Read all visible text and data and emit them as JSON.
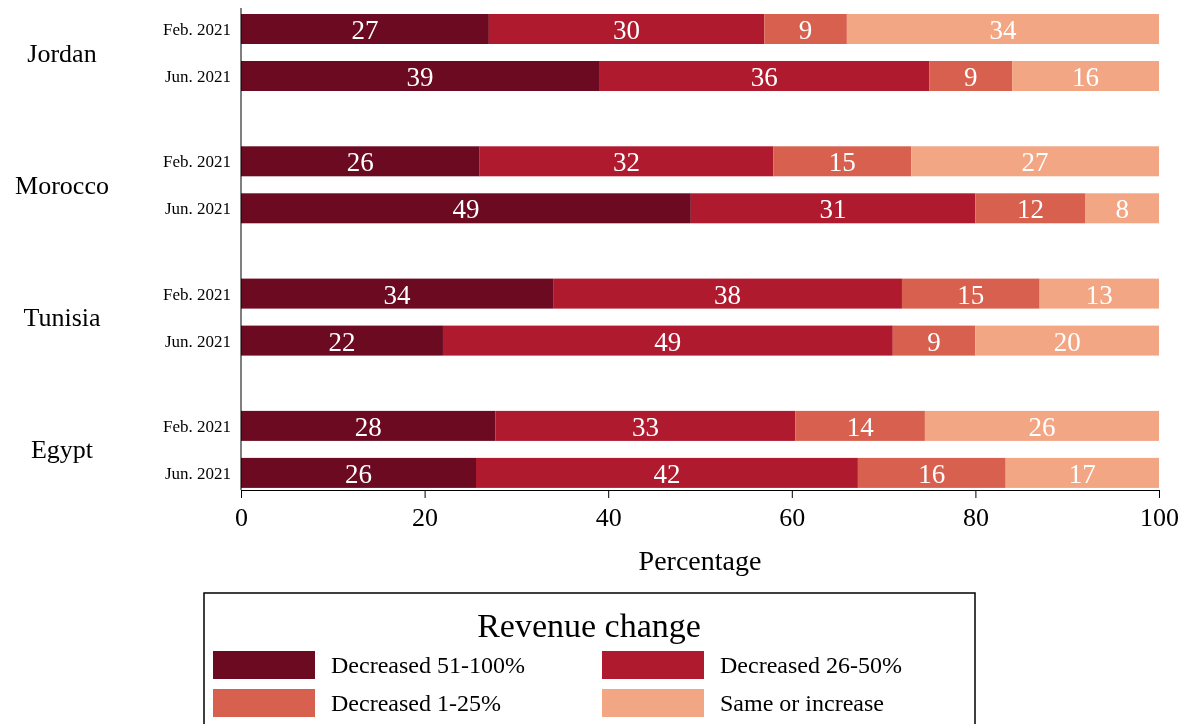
{
  "chart_data": {
    "type": "bar",
    "orientation": "horizontal",
    "stacked": true,
    "grid": false,
    "legend": "bottom",
    "legend_title": "Revenue change",
    "xlabel": "Percentage",
    "xlim": [
      0,
      100
    ],
    "xticks": [
      0,
      20,
      40,
      60,
      80,
      100
    ],
    "categories": [
      "Feb. 2021",
      "Jun. 2021",
      "Feb. 2021",
      "Jun. 2021",
      "Feb. 2021",
      "Jun. 2021",
      "Feb. 2021",
      "Jun. 2021"
    ],
    "annotations": [
      "Jordan",
      "Morocco",
      "Tunisia",
      "Egypt"
    ],
    "series": [
      {
        "name": "Decreased 51-100%",
        "color": "#6b0a21",
        "values": [
          27,
          39,
          26,
          49,
          34,
          22,
          27.7,
          25.6
        ],
        "value_labels": [
          "27",
          "39",
          "26",
          "49",
          "34",
          "22",
          "28",
          "26"
        ]
      },
      {
        "name": "Decreased 26-50%",
        "color": "#b01a2e",
        "values": [
          30,
          36,
          32,
          31,
          38,
          49,
          32.7,
          41.6
        ],
        "value_labels": [
          "30",
          "36",
          "32",
          "31",
          "38",
          "49",
          "33",
          "42"
        ]
      },
      {
        "name": "Decreased 1-25%",
        "color": "#d8604f",
        "values": [
          9,
          9,
          15,
          12,
          15,
          9,
          14.1,
          16.1
        ],
        "value_labels": [
          "9",
          "9",
          "15",
          "12",
          "15",
          "9",
          "14",
          "16"
        ]
      },
      {
        "name": "Same or increase",
        "color": "#f3a683",
        "values": [
          34,
          16,
          27,
          8,
          13,
          20,
          25.5,
          16.7
        ],
        "value_labels": [
          "34",
          "16",
          "27",
          "8",
          "13",
          "20",
          "26",
          "17"
        ]
      }
    ]
  }
}
